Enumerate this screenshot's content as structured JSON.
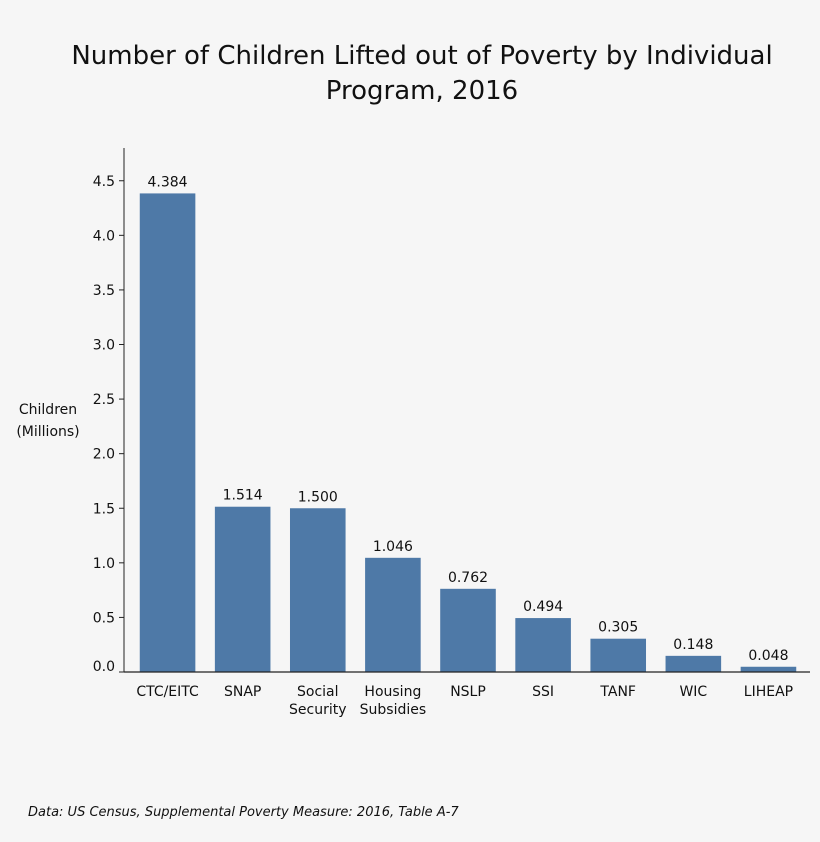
{
  "chart_data": {
    "type": "bar",
    "title": "Number of Children Lifted out of Poverty by Individual Program, 2016",
    "title_lines": [
      "Number of Children Lifted out of Poverty by Individual",
      "Program, 2016"
    ],
    "xlabel": "",
    "ylabel": "Children (Millions)",
    "ylabel_lines": [
      "Children",
      "(Millions)"
    ],
    "ylim": [
      0,
      4.8
    ],
    "yticks": [
      "0.0",
      "0.5",
      "1.0",
      "1.5",
      "2.0",
      "2.5",
      "3.0",
      "3.5",
      "4.0",
      "4.5"
    ],
    "grid": false,
    "bar_color": "#4e79a7",
    "categories": [
      "CTC/EITC",
      "SNAP",
      "Social Security",
      "Housing Subsidies",
      "NSLP",
      "SSI",
      "TANF",
      "WIC",
      "LIHEAP"
    ],
    "category_lines": [
      [
        "CTC/EITC"
      ],
      [
        "SNAP"
      ],
      [
        "Social",
        "Security"
      ],
      [
        "Housing",
        "Subsidies"
      ],
      [
        "NSLP"
      ],
      [
        "SSI"
      ],
      [
        "TANF"
      ],
      [
        "WIC"
      ],
      [
        "LIHEAP"
      ]
    ],
    "values": [
      4.384,
      1.514,
      1.5,
      1.046,
      0.762,
      0.494,
      0.305,
      0.148,
      0.048
    ],
    "value_labels": [
      "4.384",
      "1.514",
      "1.500",
      "1.046",
      "0.762",
      "0.494",
      "0.305",
      "0.148",
      "0.048"
    ]
  },
  "source_note": "Data: US Census, Supplemental Poverty Measure: 2016, Table A-7"
}
